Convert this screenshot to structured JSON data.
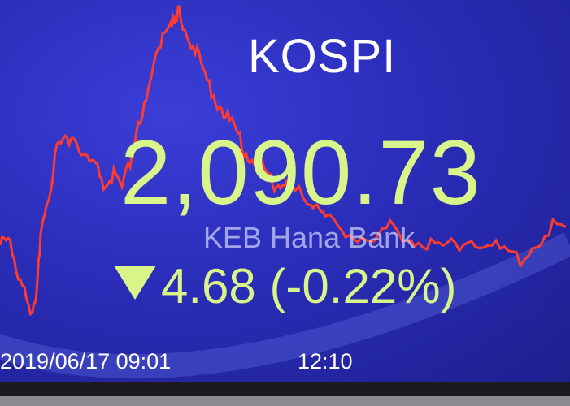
{
  "board": {
    "index_name": "KOSPI",
    "value": "2,090.73",
    "change_direction": "down",
    "change": "4.68",
    "change_percent": "(-0.22%)",
    "sponsor_logo": "KEB Hana Bank",
    "time_start": "2019/06/17 09:01",
    "time_mid": "12:10"
  },
  "colors": {
    "line": "#ff3b30",
    "value_text": "#d9f58a",
    "background": "#2a2db8"
  }
}
